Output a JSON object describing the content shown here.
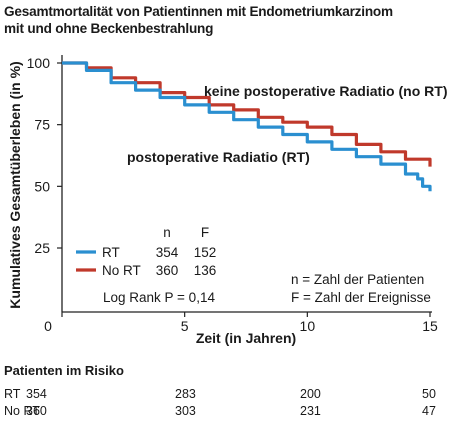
{
  "title_line1": "Gesamtmortalität von Patientinnen mit Endometriumkarzinom",
  "title_line2": "mit und ohne Beckenbestrahlung",
  "chart_data": {
    "type": "line",
    "step": true,
    "ylabel": "Kumulatives Gesamtüberleben (in %)",
    "xlabel": "Zeit (in Jahren)",
    "xlim": [
      0,
      15
    ],
    "ylim": [
      25,
      100
    ],
    "x_ticks": [
      0,
      5,
      10,
      15
    ],
    "y_ticks": [
      25,
      50,
      75,
      100
    ],
    "series": [
      {
        "name": "RT",
        "color": "#2a8fd0",
        "points": [
          [
            0,
            100
          ],
          [
            1,
            97
          ],
          [
            2,
            92
          ],
          [
            3,
            89
          ],
          [
            4,
            86
          ],
          [
            5,
            83
          ],
          [
            6,
            80
          ],
          [
            7,
            77
          ],
          [
            8,
            74
          ],
          [
            9,
            71
          ],
          [
            10,
            68
          ],
          [
            11,
            65
          ],
          [
            12,
            62
          ],
          [
            13,
            59
          ],
          [
            14,
            55
          ],
          [
            14.5,
            53
          ],
          [
            14.7,
            50
          ],
          [
            15,
            48
          ]
        ]
      },
      {
        "name": "No RT",
        "color": "#c0392b",
        "points": [
          [
            0,
            100
          ],
          [
            1,
            98
          ],
          [
            2,
            94
          ],
          [
            3,
            92
          ],
          [
            4,
            88
          ],
          [
            5,
            86
          ],
          [
            6,
            83
          ],
          [
            7,
            81
          ],
          [
            8,
            78
          ],
          [
            9,
            76
          ],
          [
            10,
            74
          ],
          [
            11,
            71
          ],
          [
            12,
            67
          ],
          [
            13,
            64
          ],
          [
            14,
            61
          ],
          [
            15,
            58
          ]
        ]
      }
    ],
    "annotations": {
      "no_rt": "keine postoperative Radiatio (no RT)",
      "rt": "postoperative Radiatio (RT)"
    },
    "legend": {
      "header_n": "n",
      "header_f": "F",
      "rows": [
        {
          "label": "RT",
          "n": "354",
          "f": "152",
          "color": "#2a8fd0"
        },
        {
          "label": "No RT",
          "n": "360",
          "f": "136",
          "color": "#c0392b"
        }
      ],
      "log_rank": "Log Rank P = 0,14"
    },
    "notes": {
      "n_note": "n = Zahl der Patienten",
      "f_note": "F = Zahl der Ereignisse"
    }
  },
  "risk_table": {
    "title": "Patienten im Risiko",
    "rows": [
      {
        "label": "RT",
        "values": [
          "354",
          "283",
          "200",
          "50"
        ]
      },
      {
        "label": "No RT",
        "values": [
          "360",
          "303",
          "231",
          "47"
        ]
      }
    ]
  }
}
